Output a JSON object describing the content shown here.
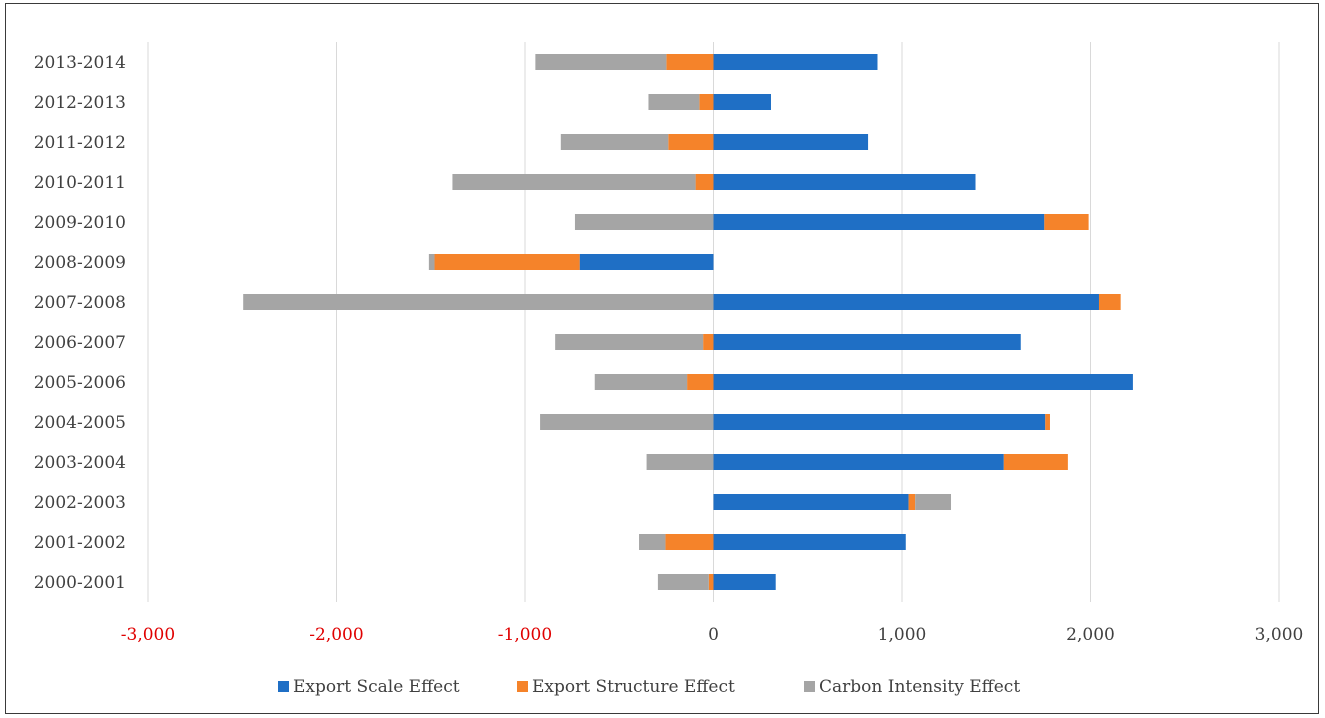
{
  "chart_data": {
    "type": "bar",
    "orientation": "horizontal",
    "stacked": true,
    "categories": [
      "2013-2014",
      "2012-2013",
      "2011-2012",
      "2010-2011",
      "2009-2010",
      "2008-2009",
      "2007-2008",
      "2006-2007",
      "2005-2006",
      "2004-2005",
      "2003-2004",
      "2002-2003",
      "2001-2002",
      "2000-2001"
    ],
    "series": [
      {
        "name": "Export Scale Effect",
        "color": "#1f6fc5",
        "values": [
          870,
          305,
          820,
          1390,
          1755,
          -710,
          2045,
          1630,
          2225,
          1760,
          1540,
          1035,
          1020,
          330
        ]
      },
      {
        "name": "Export Structure Effect",
        "color": "#f5832a",
        "values": [
          -250,
          -75,
          -240,
          -95,
          235,
          -770,
          115,
          -55,
          -140,
          25,
          340,
          35,
          -255,
          -25
        ]
      },
      {
        "name": "Carbon Intensity Effect",
        "color": "#a5a5a5",
        "values": [
          -695,
          -270,
          -570,
          -1290,
          -735,
          -30,
          -2495,
          -785,
          -490,
          -920,
          -355,
          190,
          -140,
          -270
        ]
      }
    ],
    "xlim": [
      -3000,
      3000
    ],
    "xticks": [
      {
        "value": -3000,
        "label": "-3,000",
        "color": "#e00000"
      },
      {
        "value": -2000,
        "label": "-2,000",
        "color": "#e00000"
      },
      {
        "value": -1000,
        "label": "-1,000",
        "color": "#e00000"
      },
      {
        "value": 0,
        "label": "0",
        "color": "#404040"
      },
      {
        "value": 1000,
        "label": "1,000",
        "color": "#404040"
      },
      {
        "value": 2000,
        "label": "2,000",
        "color": "#404040"
      },
      {
        "value": 3000,
        "label": "3,000",
        "color": "#404040"
      }
    ],
    "grid": true,
    "legend_position": "bottom",
    "title": "",
    "xlabel": "",
    "ylabel": ""
  }
}
